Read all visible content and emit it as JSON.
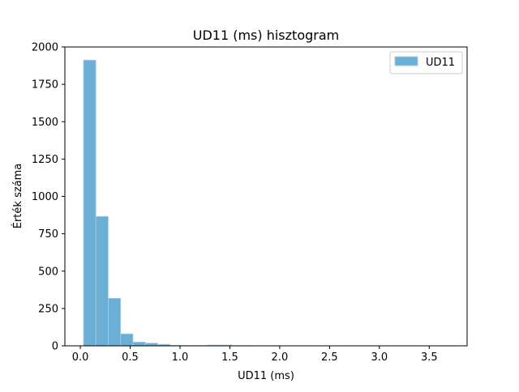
{
  "chart_data": {
    "type": "bar",
    "subtype": "histogram",
    "title": "UD11 (ms) hisztogram",
    "xlabel": "UD11 (ms)",
    "ylabel": "Érték száma",
    "xlim": [
      -0.155,
      3.88
    ],
    "ylim": [
      0,
      2000
    ],
    "x_ticks": [
      0.0,
      0.5,
      1.0,
      1.5,
      2.0,
      2.5,
      3.0,
      3.5
    ],
    "x_tick_labels": [
      "0.0",
      "0.5",
      "1.0",
      "1.5",
      "2.0",
      "2.5",
      "3.0",
      "3.5"
    ],
    "y_ticks": [
      0,
      250,
      500,
      750,
      1000,
      1250,
      1500,
      1750,
      2000
    ],
    "y_tick_labels": [
      "0",
      "250",
      "500",
      "750",
      "1000",
      "1250",
      "1500",
      "1750",
      "2000"
    ],
    "grid": false,
    "legend_position": "top-right",
    "bar_color": "#6baed6",
    "bar_edge_color": "#a9cde6",
    "series": [
      {
        "name": "UD11",
        "bin_edges": [
          0.032,
          0.156,
          0.28,
          0.404,
          0.528,
          0.652,
          0.776,
          0.9,
          1.024,
          1.148,
          1.272,
          1.396,
          1.52,
          1.644,
          1.768,
          1.892,
          2.016,
          2.14,
          2.264,
          2.388,
          2.512,
          2.636,
          2.76,
          2.884,
          3.008,
          3.132,
          3.256,
          3.38,
          3.504,
          3.628,
          3.752
        ],
        "counts": [
          1912,
          866,
          318,
          80,
          25,
          18,
          10,
          3,
          2,
          2,
          5,
          5,
          1,
          1,
          0,
          1,
          0,
          0,
          0,
          0,
          0,
          0,
          0,
          0,
          0,
          0,
          0,
          0,
          0,
          1
        ]
      }
    ]
  }
}
